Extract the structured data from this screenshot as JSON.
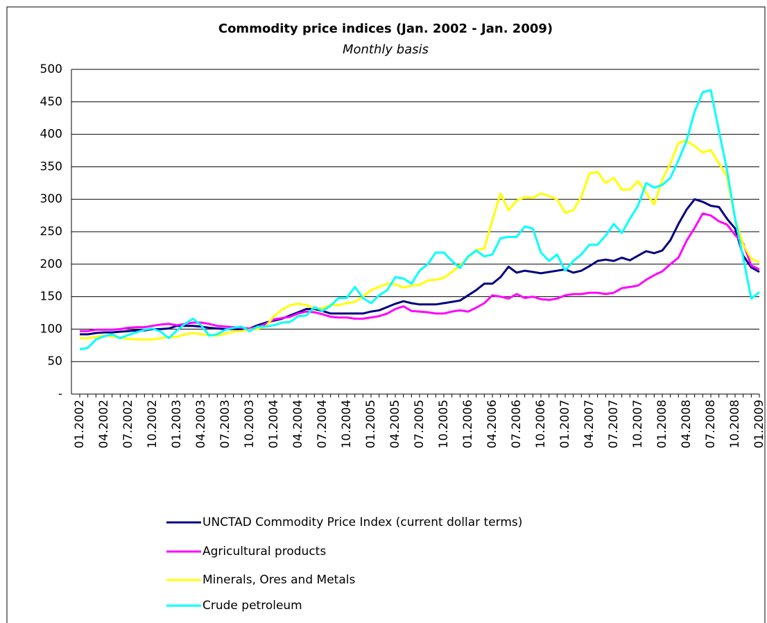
{
  "chart_data": {
    "type": "line",
    "title": "Commodity price indices (Jan. 2002 - Jan. 2009)",
    "subtitle": "Monthly basis",
    "categories": [
      "01.2002",
      null,
      null,
      "04.2002",
      null,
      null,
      "07.2002",
      null,
      null,
      "10.2002",
      null,
      null,
      "01.2003",
      null,
      null,
      "04.2003",
      null,
      null,
      "07.2003",
      null,
      null,
      "10.2003",
      null,
      null,
      "01.2004",
      null,
      null,
      "04.2004",
      null,
      null,
      "07.2004",
      null,
      null,
      "10.2004",
      null,
      null,
      "01.2005",
      null,
      null,
      "04.2005",
      null,
      null,
      "07.2005",
      null,
      null,
      "10.2005",
      null,
      null,
      "01.2006",
      null,
      null,
      "04.2006",
      null,
      null,
      "07.2006",
      null,
      null,
      "10.2006",
      null,
      null,
      "01.2007",
      null,
      null,
      "04.2007",
      null,
      null,
      "07.2007",
      null,
      null,
      "10.2007",
      null,
      null,
      "01.2008",
      null,
      null,
      "04.2008",
      null,
      null,
      "07.2008",
      null,
      null,
      "10.2008",
      null,
      null,
      "01.2009"
    ],
    "series": [
      {
        "name": "UNCTAD Commodity Price Index (current dollar terms)",
        "color": "#000080",
        "values": [
          92,
          92,
          94,
          95,
          95,
          96,
          97,
          98,
          98,
          100,
          100,
          101,
          105,
          105,
          105,
          104,
          102,
          101,
          100,
          100,
          100,
          101,
          106,
          110,
          113,
          116,
          121,
          126,
          131,
          131,
          128,
          124,
          124,
          124,
          124,
          124,
          127,
          129,
          134,
          139,
          143,
          140,
          138,
          138,
          138,
          140,
          142,
          144,
          152,
          160,
          170,
          170,
          180,
          196,
          187,
          190,
          188,
          186,
          188,
          190,
          192,
          187,
          190,
          197,
          205,
          207,
          205,
          210,
          206,
          213,
          220,
          217,
          221,
          237,
          262,
          284,
          300,
          296,
          290,
          288,
          270,
          255,
          213,
          195,
          188
        ]
      },
      {
        "name": "Agricultural products",
        "color": "#ff00ff",
        "values": [
          97,
          97,
          99,
          99,
          99,
          100,
          102,
          103,
          103,
          105,
          107,
          108,
          106,
          108,
          110,
          110,
          108,
          105,
          104,
          103,
          102,
          101,
          103,
          108,
          115,
          117,
          119,
          124,
          127,
          126,
          123,
          119,
          118,
          118,
          116,
          116,
          118,
          120,
          124,
          131,
          135,
          128,
          127,
          126,
          124,
          124,
          127,
          129,
          127,
          133,
          140,
          152,
          150,
          147,
          154,
          148,
          150,
          146,
          145,
          147,
          152,
          154,
          154,
          156,
          156,
          154,
          156,
          163,
          165,
          167,
          176,
          183,
          189,
          200,
          210,
          236,
          256,
          278,
          275,
          266,
          261,
          245,
          232,
          198,
          192
        ]
      },
      {
        "name": "Minerals, Ores and Metals",
        "color": "#ffff00",
        "values": [
          86,
          86,
          88,
          90,
          89,
          87,
          85,
          84,
          84,
          84,
          86,
          88,
          88,
          92,
          94,
          92,
          91,
          90,
          93,
          96,
          97,
          99,
          101,
          104,
          120,
          130,
          137,
          139,
          137,
          132,
          132,
          137,
          137,
          140,
          142,
          150,
          160,
          165,
          170,
          169,
          164,
          167,
          168,
          175,
          176,
          179,
          188,
          198,
          210,
          222,
          224,
          268,
          309,
          283,
          298,
          303,
          302,
          309,
          305,
          300,
          279,
          283,
          304,
          340,
          342,
          325,
          333,
          315,
          315,
          328,
          310,
          292,
          330,
          355,
          387,
          390,
          382,
          372,
          376,
          355,
          335,
          270,
          230,
          208,
          203
        ]
      },
      {
        "name": "Crude petroleum",
        "color": "#00ffff",
        "values": [
          69,
          71,
          84,
          89,
          92,
          86,
          91,
          95,
          99,
          101,
          96,
          86,
          98,
          108,
          116,
          106,
          90,
          92,
          99,
          102,
          104,
          97,
          104,
          104,
          106,
          110,
          111,
          120,
          121,
          134,
          128,
          136,
          148,
          148,
          165,
          148,
          140,
          152,
          160,
          180,
          178,
          170,
          190,
          200,
          218,
          218,
          205,
          194,
          212,
          221,
          212,
          215,
          240,
          242,
          242,
          258,
          255,
          218,
          205,
          215,
          190,
          205,
          215,
          230,
          230,
          244,
          262,
          248,
          270,
          290,
          325,
          318,
          322,
          333,
          360,
          390,
          435,
          465,
          468,
          405,
          345,
          270,
          210,
          147,
          157
        ]
      }
    ],
    "ylim": [
      0,
      500
    ],
    "yticks": [
      {
        "value": 0,
        "label": "-"
      },
      50,
      100,
      150,
      200,
      250,
      300,
      350,
      400,
      450,
      500
    ],
    "grid": true
  }
}
